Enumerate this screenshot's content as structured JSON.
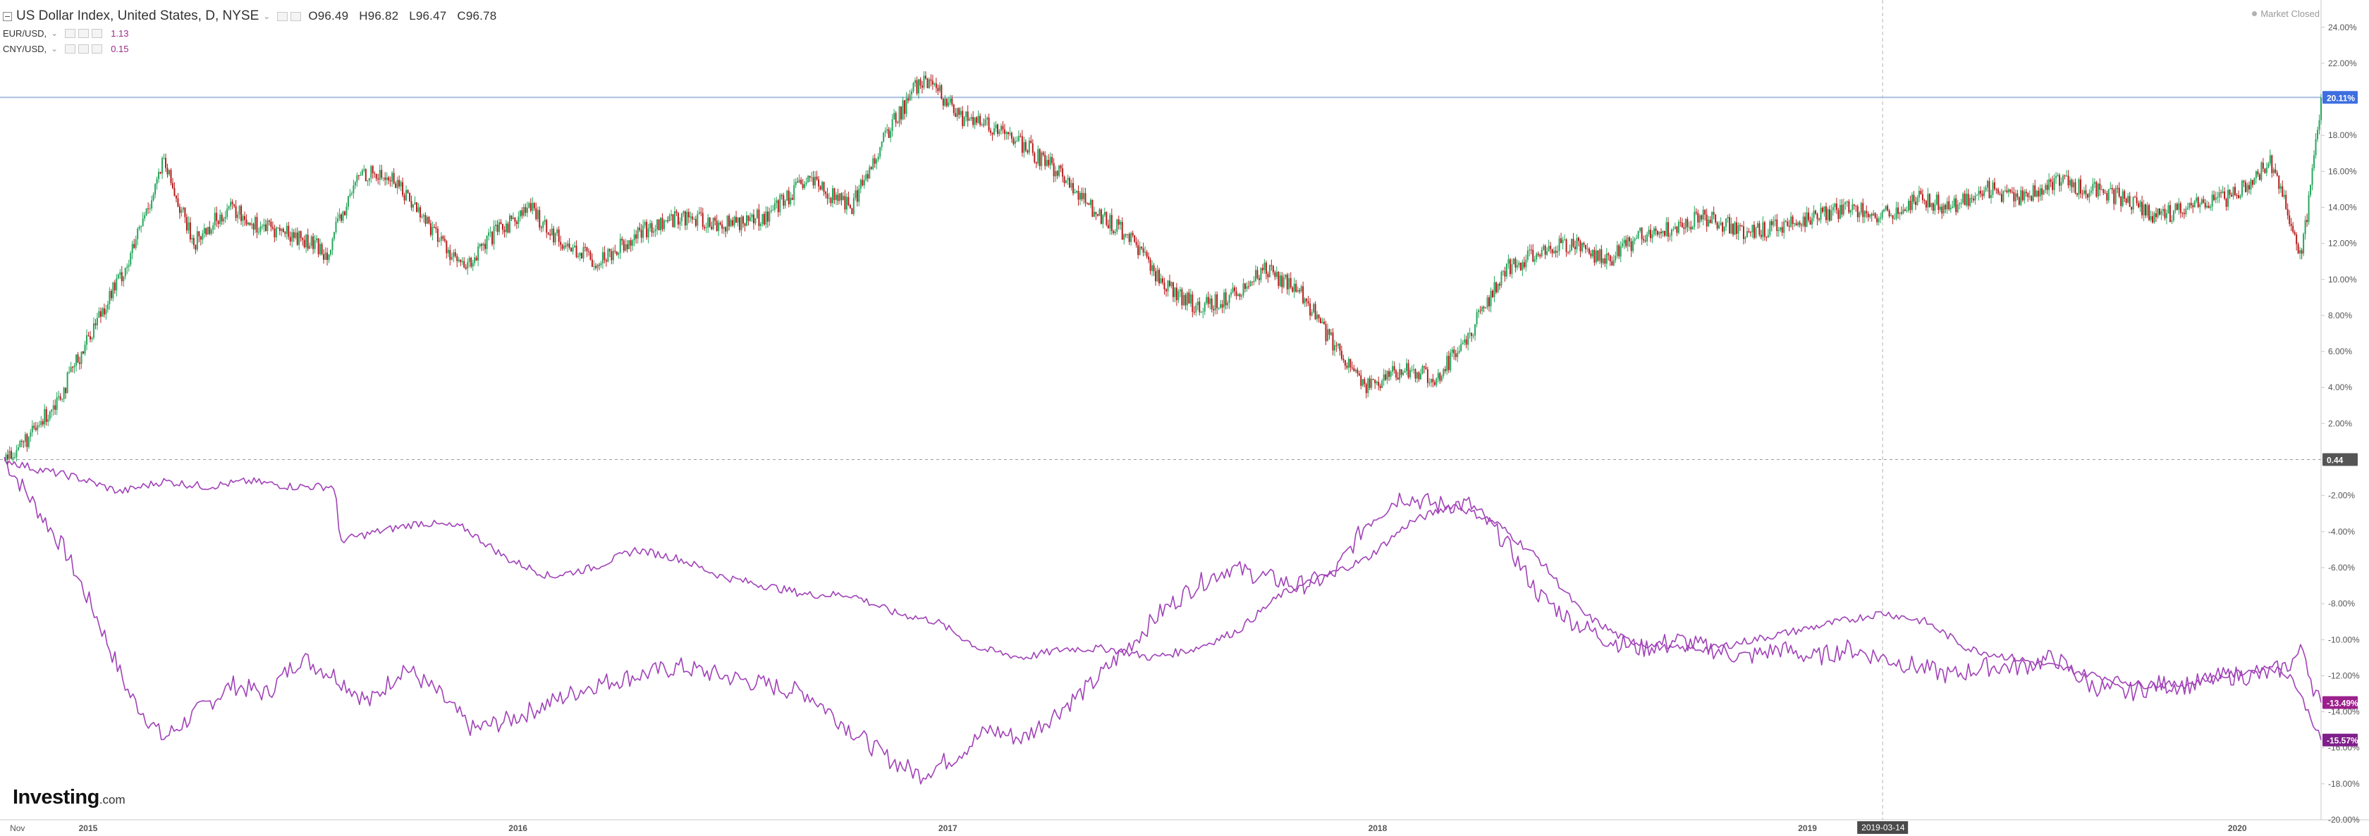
{
  "header": {
    "symbol": "US Dollar Index, United States, D, NYSE",
    "caret": "⌄",
    "ohlc": {
      "open": "O96.49",
      "high": "H96.82",
      "low": "L96.47",
      "close": "C96.78"
    },
    "market_status": "Market Closed"
  },
  "overlays": [
    {
      "symbol": "EUR/USD,",
      "value": "1.13"
    },
    {
      "symbol": "CNY/USD,",
      "value": "0.15"
    }
  ],
  "brand": {
    "name": "Investing",
    "suffix": ".com"
  },
  "crosshair_date": "2019-03-14",
  "colors": {
    "up_candle": "#26a65b",
    "down_candle": "#b71c1c",
    "overlay_line": "#a142b8",
    "crosshair_h": "#aabde0",
    "price_badge": "#3d6fe0",
    "zero_badge": "#555555",
    "eur_badge": "#9c1f8c",
    "cny_badge": "#7f1f8a"
  },
  "chart_data": {
    "type": "line",
    "ylabel_unit": "%",
    "ylim": [
      -20,
      25
    ],
    "y_ticks": [
      "24.00%",
      "22.00%",
      "20.00%",
      "18.00%",
      "16.00%",
      "14.00%",
      "12.00%",
      "10.00%",
      "8.00%",
      "6.00%",
      "4.00%",
      "2.00%",
      "0.44",
      "-2.00%",
      "-4.00%",
      "-6.00%",
      "-8.00%",
      "-10.00%",
      "-12.00%",
      "-14.00%",
      "-16.00%",
      "-18.00%",
      "-20.00%"
    ],
    "x_labels": [
      "Nov",
      "2015",
      "2016",
      "2017",
      "2018",
      "2019",
      "2020"
    ],
    "current_labels": {
      "dxy": "20.11%",
      "zero": "0.44",
      "eur": "-13.49%",
      "cny": "-15.57%"
    },
    "series": [
      {
        "name": "US Dollar Index",
        "style": "candlestick",
        "x": [
          2014.83,
          2014.9,
          2014.97,
          2015.05,
          2015.12,
          2015.2,
          2015.27,
          2015.35,
          2015.42,
          2015.5,
          2015.58,
          2015.66,
          2015.74,
          2015.82,
          2015.9,
          2015.97,
          2016.05,
          2016.13,
          2016.21,
          2016.3,
          2016.4,
          2016.5,
          2016.6,
          2016.7,
          2016.8,
          2016.88,
          2016.96,
          2017.0,
          2017.05,
          2017.12,
          2017.2,
          2017.28,
          2017.36,
          2017.44,
          2017.52,
          2017.6,
          2017.68,
          2017.76,
          2017.84,
          2017.92,
          2018.0,
          2018.08,
          2018.16,
          2018.24,
          2018.32,
          2018.4,
          2018.48,
          2018.56,
          2018.64,
          2018.72,
          2018.8,
          2018.88,
          2018.96,
          2019.04,
          2019.12,
          2019.2,
          2019.28,
          2019.36,
          2019.44,
          2019.52,
          2019.6,
          2019.68,
          2019.76,
          2019.84,
          2019.92,
          2020.0,
          2020.06,
          2020.1,
          2020.14,
          2020.17,
          2020.19,
          2020.22
        ],
        "values": [
          0.0,
          1.5,
          4.0,
          8.0,
          11.0,
          16.5,
          12.0,
          14.0,
          13.0,
          12.5,
          11.5,
          16.0,
          15.5,
          13.0,
          10.5,
          12.5,
          14.0,
          12.0,
          11.0,
          12.5,
          13.5,
          13.0,
          13.5,
          15.5,
          14.0,
          18.0,
          21.0,
          20.5,
          19.0,
          18.5,
          17.5,
          16.0,
          14.0,
          12.5,
          10.0,
          8.5,
          9.0,
          10.5,
          9.5,
          6.5,
          4.0,
          5.0,
          4.5,
          7.0,
          10.5,
          11.5,
          12.0,
          11.0,
          12.5,
          13.0,
          13.5,
          12.5,
          13.0,
          13.5,
          14.0,
          13.5,
          14.5,
          14.0,
          15.0,
          14.5,
          15.5,
          15.0,
          14.5,
          13.5,
          14.0,
          14.5,
          15.5,
          16.5,
          14.0,
          11.0,
          14.0,
          20.11
        ]
      },
      {
        "name": "EUR/USD",
        "style": "line",
        "x": [
          2014.83,
          2014.9,
          2014.97,
          2015.05,
          2015.12,
          2015.2,
          2015.28,
          2015.36,
          2015.44,
          2015.52,
          2015.6,
          2015.68,
          2015.76,
          2015.84,
          2015.92,
          2016.0,
          2016.1,
          2016.2,
          2016.3,
          2016.4,
          2016.5,
          2016.6,
          2016.7,
          2016.8,
          2016.88,
          2016.96,
          2017.04,
          2017.12,
          2017.2,
          2017.28,
          2017.36,
          2017.44,
          2017.52,
          2017.6,
          2017.68,
          2017.76,
          2017.84,
          2017.92,
          2018.0,
          2018.08,
          2018.16,
          2018.24,
          2018.32,
          2018.4,
          2018.48,
          2018.56,
          2018.64,
          2018.72,
          2018.8,
          2018.88,
          2018.96,
          2019.04,
          2019.12,
          2019.2,
          2019.28,
          2019.36,
          2019.44,
          2019.52,
          2019.6,
          2019.68,
          2019.76,
          2019.84,
          2019.92,
          2020.0,
          2020.08,
          2020.14,
          2020.18,
          2020.2,
          2020.22
        ],
        "values": [
          0.0,
          -2.5,
          -5.0,
          -9.0,
          -13.0,
          -15.5,
          -14.0,
          -12.5,
          -13.0,
          -11.0,
          -12.0,
          -13.5,
          -11.5,
          -13.0,
          -15.0,
          -14.5,
          -13.5,
          -12.5,
          -12.0,
          -11.5,
          -12.0,
          -12.5,
          -13.0,
          -15.0,
          -16.5,
          -17.5,
          -16.5,
          -15.0,
          -15.5,
          -14.0,
          -12.5,
          -10.5,
          -8.5,
          -7.0,
          -6.0,
          -6.5,
          -7.0,
          -6.5,
          -3.5,
          -2.0,
          -2.5,
          -2.5,
          -4.5,
          -7.5,
          -9.0,
          -10.0,
          -10.5,
          -10.0,
          -10.5,
          -11.0,
          -10.5,
          -11.0,
          -10.5,
          -11.0,
          -11.5,
          -12.0,
          -11.5,
          -11.5,
          -11.0,
          -12.5,
          -13.0,
          -12.5,
          -12.5,
          -12.0,
          -12.0,
          -11.5,
          -10.5,
          -12.5,
          -13.49
        ]
      },
      {
        "name": "CNY/USD",
        "style": "line",
        "x": [
          2014.83,
          2014.9,
          2015.0,
          2015.1,
          2015.2,
          2015.3,
          2015.4,
          2015.5,
          2015.6,
          2015.61,
          2015.7,
          2015.8,
          2015.9,
          2016.0,
          2016.1,
          2016.2,
          2016.3,
          2016.4,
          2016.5,
          2016.6,
          2016.7,
          2016.8,
          2016.9,
          2017.0,
          2017.1,
          2017.2,
          2017.3,
          2017.4,
          2017.5,
          2017.6,
          2017.7,
          2017.8,
          2017.9,
          2018.0,
          2018.1,
          2018.2,
          2018.3,
          2018.4,
          2018.5,
          2018.6,
          2018.7,
          2018.8,
          2018.9,
          2019.0,
          2019.1,
          2019.2,
          2019.3,
          2019.4,
          2019.5,
          2019.6,
          2019.7,
          2019.8,
          2019.9,
          2020.0,
          2020.1,
          2020.15,
          2020.2,
          2020.22
        ],
        "values": [
          0.0,
          -0.5,
          -1.0,
          -1.8,
          -1.2,
          -1.5,
          -1.2,
          -1.5,
          -1.5,
          -4.5,
          -4.0,
          -3.5,
          -3.8,
          -5.5,
          -6.5,
          -6.0,
          -5.0,
          -5.5,
          -6.5,
          -7.0,
          -7.5,
          -7.5,
          -8.5,
          -9.0,
          -10.5,
          -11.0,
          -10.5,
          -10.5,
          -11.0,
          -10.5,
          -9.5,
          -7.5,
          -6.5,
          -5.5,
          -3.5,
          -2.5,
          -3.5,
          -5.5,
          -8.5,
          -10.0,
          -10.5,
          -10.5,
          -10.0,
          -9.5,
          -9.0,
          -8.5,
          -9.0,
          -10.5,
          -11.0,
          -11.5,
          -12.0,
          -12.5,
          -12.5,
          -12.0,
          -11.5,
          -12.0,
          -14.5,
          -15.57
        ]
      }
    ]
  }
}
